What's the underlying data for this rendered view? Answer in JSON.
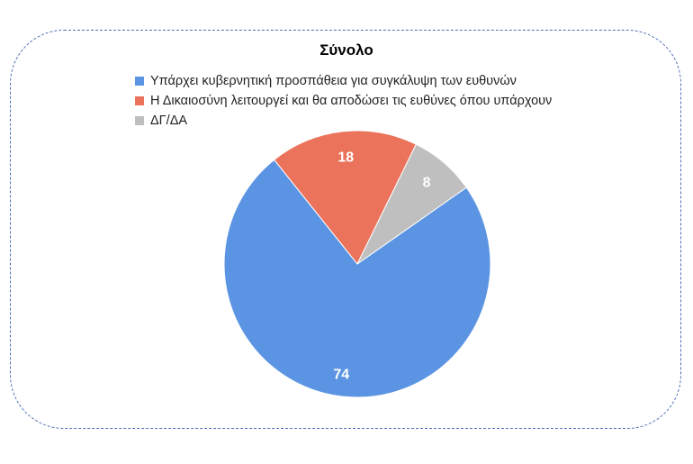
{
  "chart_data": {
    "type": "pie",
    "title": "Σύνολο",
    "legend_position": "top",
    "slices": [
      {
        "label": "Υπάρχει κυβερνητική προσπάθεια για συγκάλυψη των ευθυνών",
        "value": 74,
        "value_label": "74",
        "color": "#5b94e3"
      },
      {
        "label": "Η Δικαιοσύνη λειτουργεί και θα αποδώσει τις ευθύνες όπου υπάρχουν",
        "value": 18,
        "value_label": "18",
        "color": "#eb725b"
      },
      {
        "label": "ΔΓ/ΔΑ",
        "value": 8,
        "value_label": "8",
        "color": "#bfbfbf"
      }
    ]
  }
}
